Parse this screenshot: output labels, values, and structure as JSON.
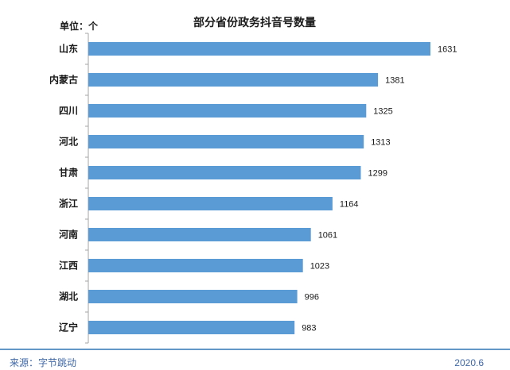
{
  "chart_data": {
    "type": "bar",
    "orientation": "horizontal",
    "title": "部分省份政务抖音号数量",
    "unit_label": "单位：个",
    "categories": [
      "山东",
      "内蒙古",
      "四川",
      "河北",
      "甘肃",
      "浙江",
      "河南",
      "江西",
      "湖北",
      "辽宁"
    ],
    "values": [
      1631,
      1381,
      1325,
      1313,
      1299,
      1164,
      1061,
      1023,
      996,
      983
    ],
    "value_labels": [
      "1631",
      "1381",
      "1325",
      "1313",
      "1299",
      "1164",
      "1061",
      "1023",
      "996",
      "983"
    ],
    "xlim": [
      0,
      1700
    ],
    "grid": false,
    "legend": "none",
    "bar_color": "#5b9bd5"
  },
  "footer": {
    "source": "来源：字节跳动",
    "date": "2020.6",
    "color": "#3f68a8",
    "line_color": "#2e75b6"
  }
}
